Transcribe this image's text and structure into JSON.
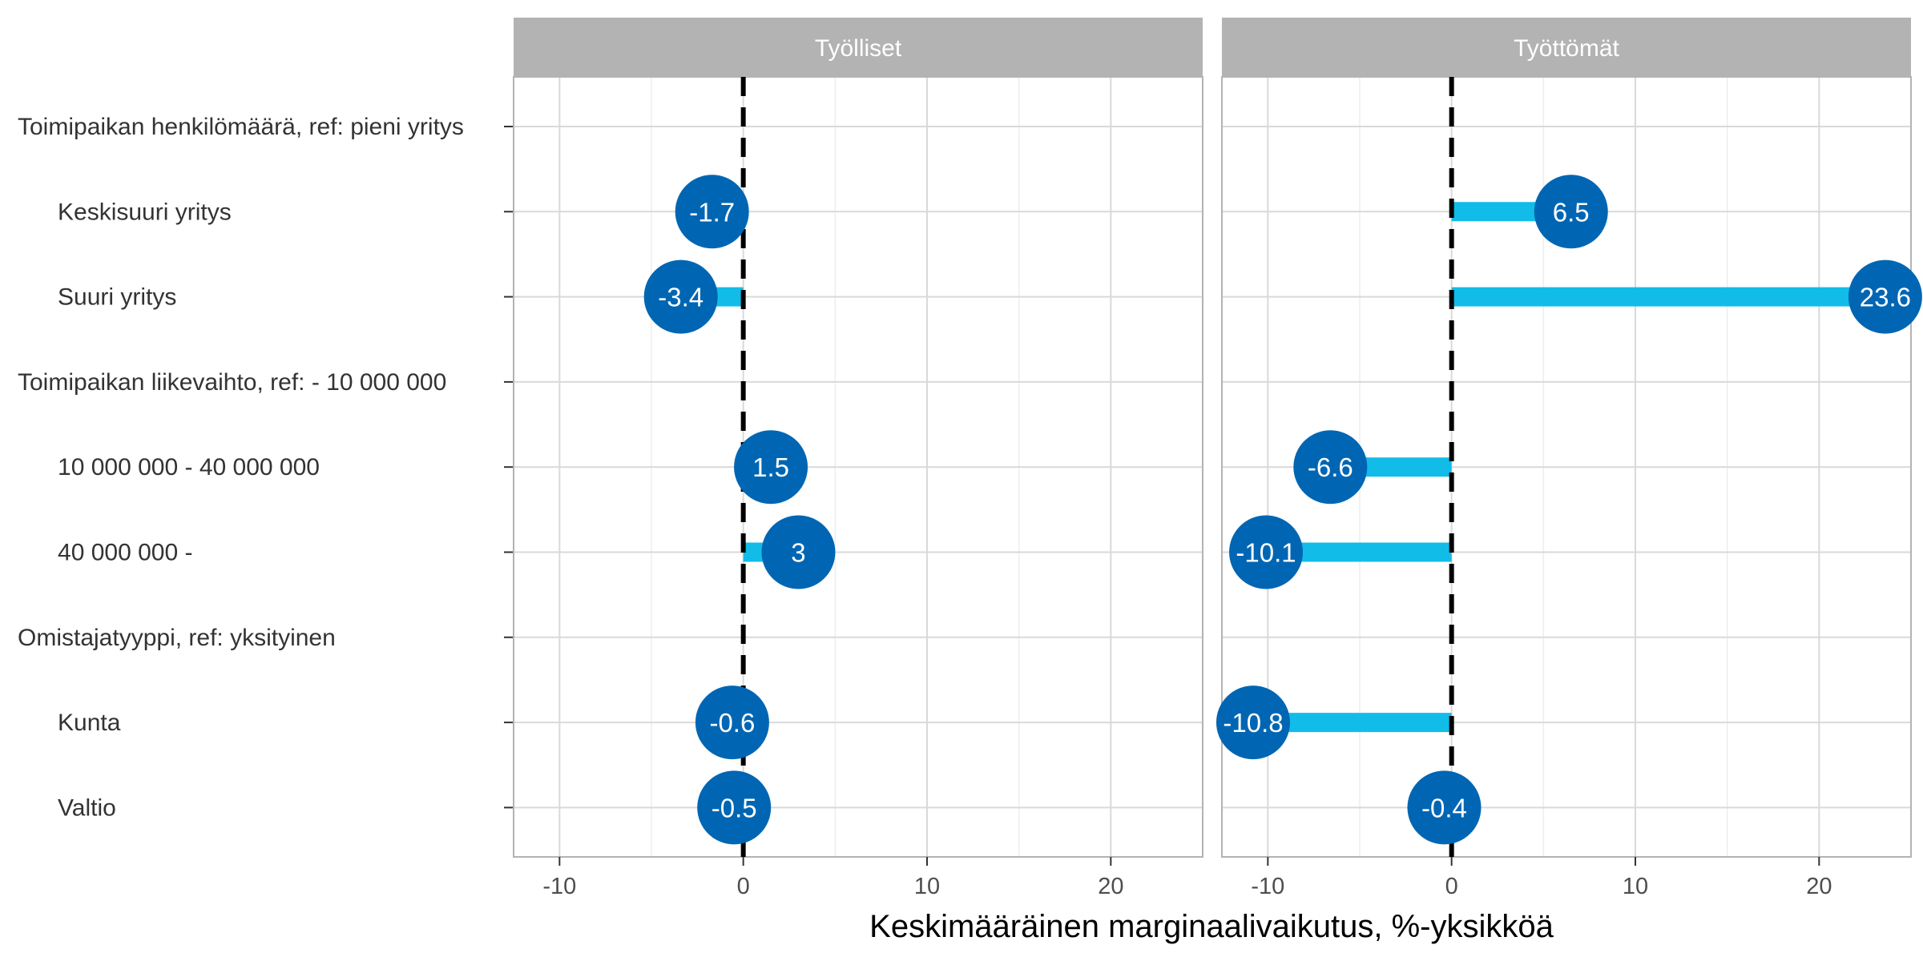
{
  "chart_data": {
    "type": "lollipop",
    "xlabel": "Keskimääräinen marginaalivaikutus, %-yksikköä",
    "xlim": [
      -12.5,
      25
    ],
    "xticks": [
      -10,
      0,
      10,
      20
    ],
    "xtick_labels": [
      "-10",
      "0",
      "10",
      "20"
    ],
    "reference_line": 0,
    "grid": true,
    "categories": [
      "Toimipaikan henkilömäärä, ref: pieni yritys",
      "   Keskisuuri yritys",
      "   Suuri yritys",
      "Toimipaikan liikevaihto, ref: - 10 000 000",
      "   10 000 000 - 40 000 000",
      "   40 000 000 -",
      "Omistajatyyppi, ref: yksityinen",
      "   Kunta",
      "   Valtio"
    ],
    "panels": [
      {
        "name": "Työlliset",
        "values": [
          null,
          -1.7,
          -3.4,
          null,
          1.5,
          3,
          null,
          -0.6,
          -0.5
        ],
        "labels": [
          null,
          "-1.7",
          "-3.4",
          null,
          "1.5",
          "3",
          null,
          "-0.6",
          "-0.5"
        ]
      },
      {
        "name": "Työttömät",
        "values": [
          null,
          6.5,
          23.6,
          null,
          -6.6,
          -10.1,
          null,
          -10.8,
          -0.4
        ],
        "labels": [
          null,
          "6.5",
          "23.6",
          null,
          "-6.6",
          "-10.1",
          null,
          "-10.8",
          "-0.4"
        ]
      }
    ],
    "colors": {
      "segment": "#12bce8",
      "point": "#0066b3",
      "strip": "#b3b3b3",
      "grid_major": "#d9d9d9",
      "grid_minor": "#ededed",
      "border": "#b3b3b3"
    }
  }
}
